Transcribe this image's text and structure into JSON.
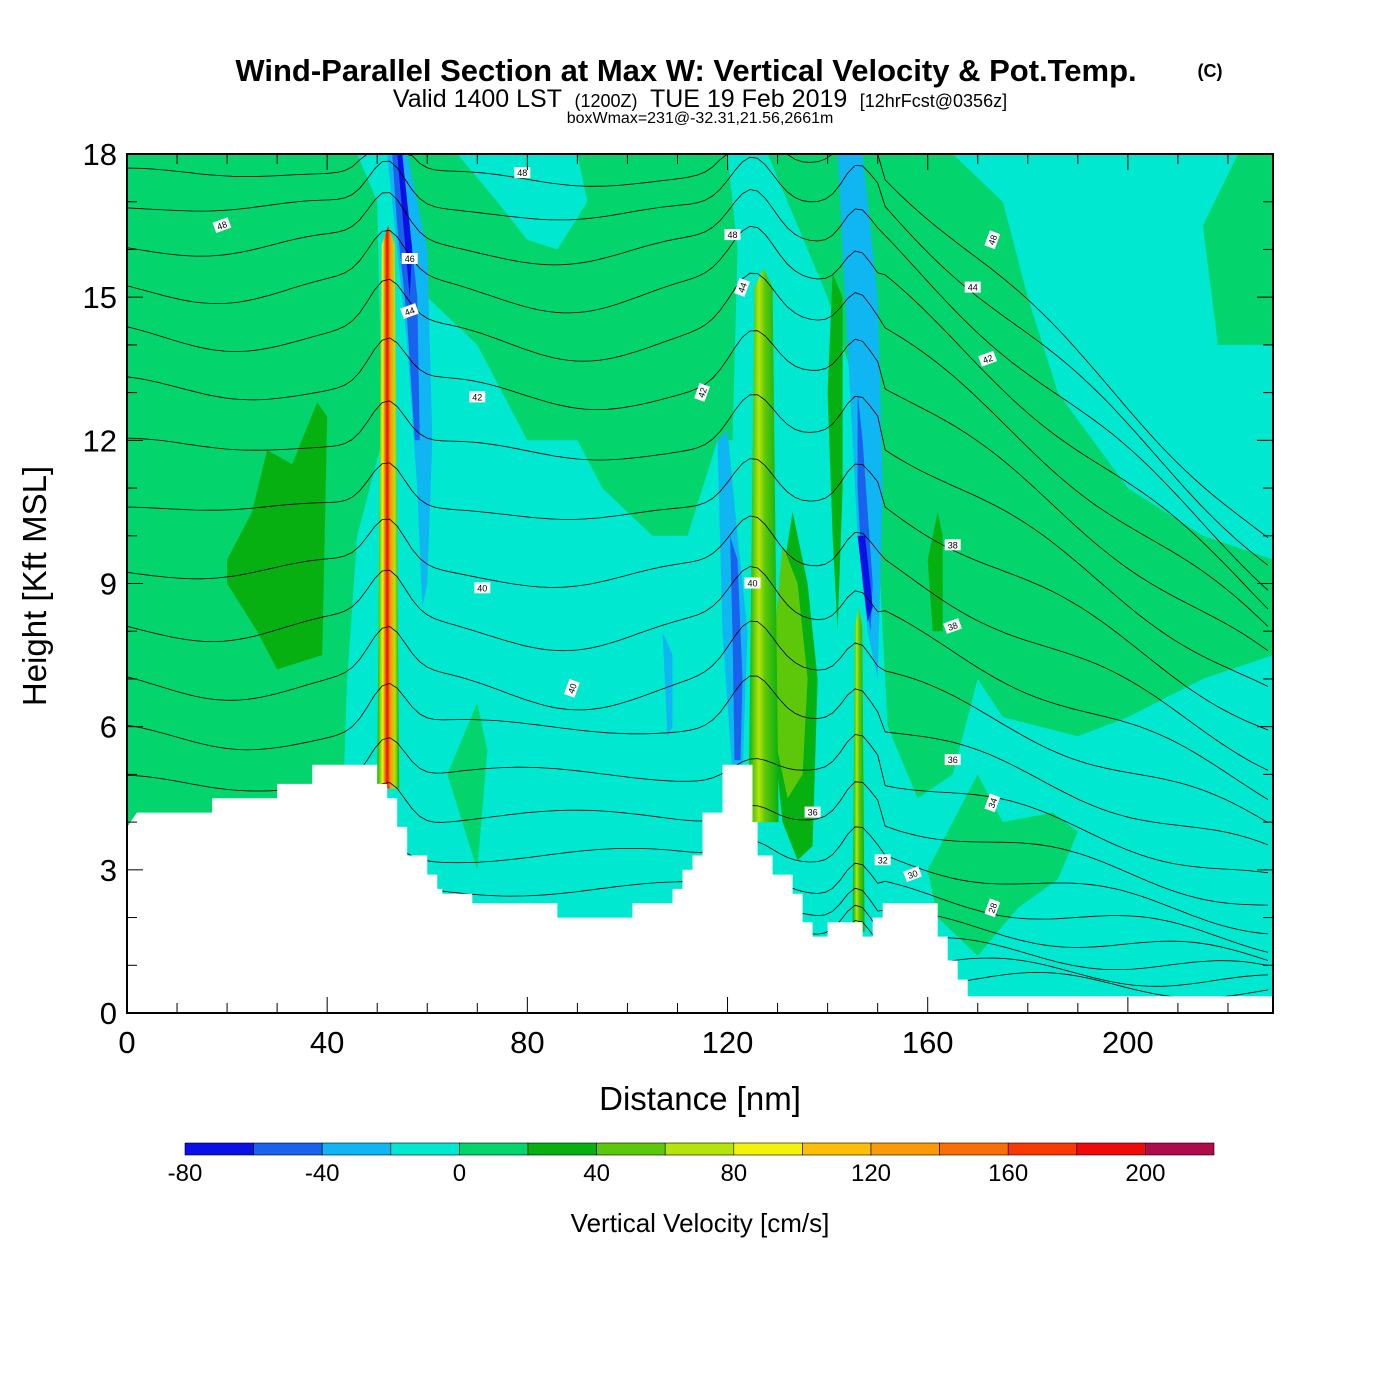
{
  "header": {
    "title": "Wind-Parallel Section at Max W: Vertical Velocity & Pot.Temp.",
    "copyright": "(C)",
    "valid_prefix": "Valid 1400 LST",
    "valid_utc": "(1200Z)",
    "valid_date": "TUE 19 Feb 2019",
    "forecast": "[12hrFcst@0356z]",
    "box_info": "boxWmax=231@-32.31,21.56,2661m"
  },
  "chart_data": {
    "type": "heatmap",
    "title": "Wind-Parallel Section at Max W: Vertical Velocity & Pot.Temp.",
    "xlabel": "Distance [nm]",
    "ylabel": "Height [Kft MSL]",
    "xlim": [
      0,
      229
    ],
    "ylim": [
      0,
      18
    ],
    "xticks": [
      0,
      40,
      80,
      120,
      160,
      200
    ],
    "yticks": [
      0,
      3,
      6,
      9,
      12,
      15,
      18
    ],
    "xtick_labels": [
      "0",
      "40",
      "80",
      "120",
      "160",
      "200"
    ],
    "ytick_labels": [
      "0",
      "3",
      "6",
      "9",
      "12",
      "15",
      "18"
    ],
    "terrain": [
      [
        0,
        3.9
      ],
      [
        2,
        4.2
      ],
      [
        17,
        4.2
      ],
      [
        17,
        4.5
      ],
      [
        30,
        4.5
      ],
      [
        30,
        4.8
      ],
      [
        37,
        4.8
      ],
      [
        37,
        5.2
      ],
      [
        50,
        5.2
      ],
      [
        50,
        4.8
      ],
      [
        52,
        4.8
      ],
      [
        52,
        4.5
      ],
      [
        54,
        4.5
      ],
      [
        54,
        3.9
      ],
      [
        56,
        3.9
      ],
      [
        56,
        3.3
      ],
      [
        60,
        3.3
      ],
      [
        60,
        2.9
      ],
      [
        62,
        2.9
      ],
      [
        62,
        2.6
      ],
      [
        63,
        2.6
      ],
      [
        63,
        2.5
      ],
      [
        69,
        2.5
      ],
      [
        69,
        2.3
      ],
      [
        86,
        2.3
      ],
      [
        86,
        2.0
      ],
      [
        101,
        2.0
      ],
      [
        101,
        2.3
      ],
      [
        109,
        2.3
      ],
      [
        109,
        2.6
      ],
      [
        111,
        2.6
      ],
      [
        111,
        3.0
      ],
      [
        113,
        3.0
      ],
      [
        113,
        3.3
      ],
      [
        115,
        3.3
      ],
      [
        115,
        4.2
      ],
      [
        119,
        4.2
      ],
      [
        119,
        5.2
      ],
      [
        125,
        5.2
      ],
      [
        125,
        4.0
      ],
      [
        126,
        4.0
      ],
      [
        126,
        3.3
      ],
      [
        129,
        3.3
      ],
      [
        129,
        2.9
      ],
      [
        133,
        2.9
      ],
      [
        133,
        2.5
      ],
      [
        135,
        2.5
      ],
      [
        135,
        1.9
      ],
      [
        137,
        1.9
      ],
      [
        137,
        1.6
      ],
      [
        140,
        1.6
      ],
      [
        140,
        1.9
      ],
      [
        147,
        1.9
      ],
      [
        147,
        1.6
      ],
      [
        149,
        1.6
      ],
      [
        149,
        2.0
      ],
      [
        151,
        2.0
      ],
      [
        151,
        2.3
      ],
      [
        162,
        2.3
      ],
      [
        162,
        1.6
      ],
      [
        164,
        1.6
      ],
      [
        164,
        1.1
      ],
      [
        166,
        1.1
      ],
      [
        166,
        0.7
      ],
      [
        168,
        0.7
      ],
      [
        168,
        0.35
      ],
      [
        229,
        0.35
      ]
    ],
    "colorbar": {
      "label": "Vertical Velocity [cm/s]",
      "levels": [
        -80,
        -60,
        -40,
        -20,
        0,
        20,
        40,
        60,
        80,
        100,
        120,
        140,
        160,
        180,
        200,
        220
      ],
      "tick_values": [
        -80,
        -40,
        0,
        40,
        80,
        120,
        160,
        200
      ],
      "tick_labels": [
        "-80",
        "-40",
        "0",
        "40",
        "80",
        "120",
        "160",
        "200"
      ],
      "colors": [
        "#0b10e6",
        "#1a62ee",
        "#0fb6f2",
        "#00e8d0",
        "#03d46c",
        "#06b010",
        "#5dc80a",
        "#b4e40a",
        "#f2f20a",
        "#fbc005",
        "#fa9a05",
        "#fa6e05",
        "#fa3805",
        "#ee0a0a",
        "#b00a4a"
      ]
    },
    "theta_contour_labels": [
      "48",
      "48",
      "48",
      "48",
      "46",
      "44",
      "44",
      "44",
      "42",
      "42",
      "42",
      "40",
      "40",
      "40",
      "38",
      "38",
      "36",
      "36",
      "34",
      "32",
      "30",
      "28"
    ]
  }
}
